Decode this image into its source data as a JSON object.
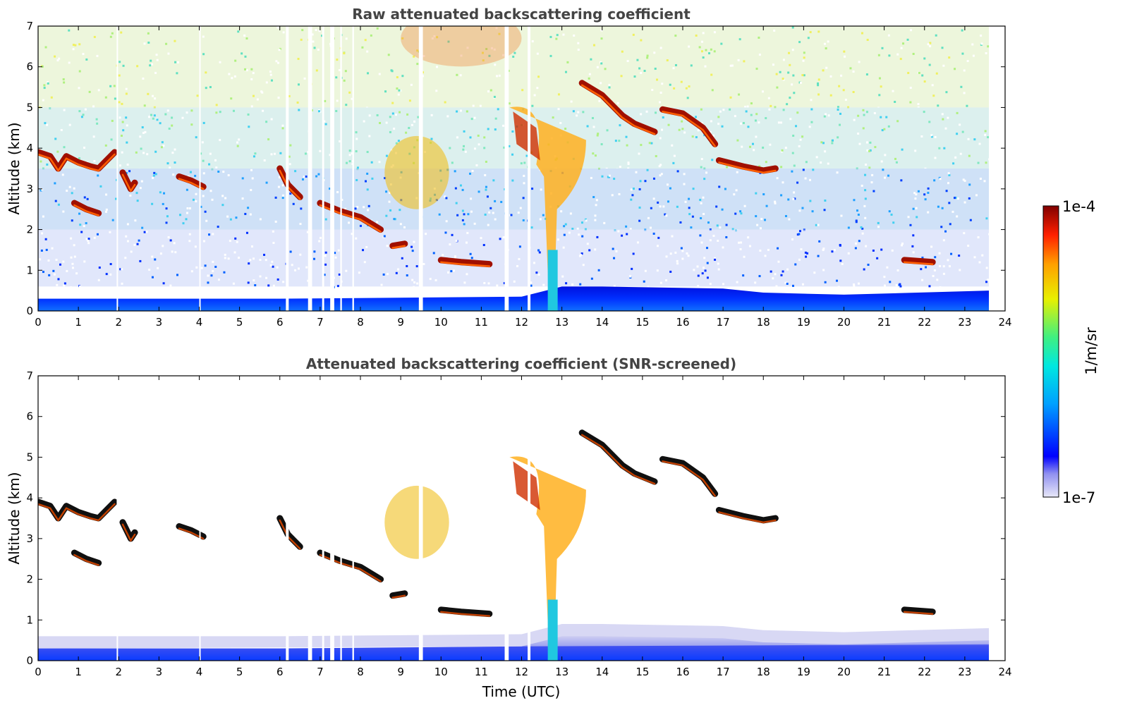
{
  "chart_data": [
    {
      "type": "heatmap",
      "title": "Raw attenuated backscattering coefficient",
      "xlabel": "",
      "ylabel": "Altitude (km)",
      "xlim": [
        0,
        24
      ],
      "ylim": [
        0,
        7
      ],
      "xticks": [
        "0",
        "1",
        "2",
        "3",
        "4",
        "5",
        "6",
        "7",
        "8",
        "9",
        "10",
        "11",
        "12",
        "13",
        "14",
        "15",
        "16",
        "17",
        "18",
        "19",
        "20",
        "21",
        "22",
        "23",
        "24"
      ],
      "yticks": [
        "0",
        "1",
        "2",
        "3",
        "4",
        "5",
        "6",
        "7"
      ],
      "grid": false,
      "data_end_time": 23.6,
      "missing_intervals": [
        [
          1.95,
          1.98
        ],
        [
          4.0,
          4.03
        ],
        [
          6.15,
          6.22
        ],
        [
          6.7,
          6.8
        ],
        [
          7.05,
          7.1
        ],
        [
          7.25,
          7.35
        ],
        [
          7.5,
          7.54
        ],
        [
          7.8,
          7.84
        ],
        [
          9.45,
          9.55
        ],
        [
          11.58,
          11.68
        ],
        [
          12.15,
          12.22
        ]
      ],
      "features": [
        {
          "kind": "boundary_layer",
          "t_start": 0,
          "t_end": 23.6,
          "top_km": [
            [
              0,
              0.3
            ],
            [
              6,
              0.3
            ],
            [
              12,
              0.35
            ],
            [
              13,
              0.6
            ],
            [
              14,
              0.6
            ],
            [
              17,
              0.55
            ],
            [
              18,
              0.45
            ],
            [
              20,
              0.4
            ],
            [
              23.6,
              0.5
            ]
          ]
        },
        {
          "kind": "cloud_layer",
          "points": [
            [
              0.0,
              3.9
            ],
            [
              0.3,
              3.8
            ],
            [
              0.5,
              3.5
            ],
            [
              0.7,
              3.8
            ],
            [
              1.0,
              3.65
            ],
            [
              1.3,
              3.55
            ],
            [
              1.5,
              3.5
            ],
            [
              1.7,
              3.7
            ],
            [
              1.9,
              3.9
            ]
          ]
        },
        {
          "kind": "cloud_layer",
          "points": [
            [
              2.1,
              3.4
            ],
            [
              2.3,
              3.0
            ],
            [
              2.4,
              3.15
            ]
          ]
        },
        {
          "kind": "cloud_layer",
          "points": [
            [
              0.9,
              2.65
            ],
            [
              1.2,
              2.5
            ],
            [
              1.5,
              2.4
            ]
          ]
        },
        {
          "kind": "cloud_layer",
          "points": [
            [
              3.5,
              3.3
            ],
            [
              3.8,
              3.2
            ],
            [
              4.1,
              3.05
            ]
          ]
        },
        {
          "kind": "cloud_layer",
          "points": [
            [
              6.0,
              3.5
            ],
            [
              6.2,
              3.1
            ],
            [
              6.5,
              2.8
            ]
          ]
        },
        {
          "kind": "cloud_layer",
          "points": [
            [
              7.0,
              2.65
            ],
            [
              7.5,
              2.45
            ],
            [
              8.0,
              2.3
            ],
            [
              8.5,
              2.0
            ]
          ]
        },
        {
          "kind": "cloud_layer",
          "points": [
            [
              8.8,
              1.6
            ],
            [
              9.1,
              1.65
            ]
          ]
        },
        {
          "kind": "cloud_layer",
          "points": [
            [
              10.0,
              1.25
            ],
            [
              10.5,
              1.2
            ],
            [
              11.2,
              1.15
            ]
          ]
        },
        {
          "kind": "cloud_layer",
          "points": [
            [
              13.5,
              5.6
            ],
            [
              14.0,
              5.3
            ],
            [
              14.5,
              4.8
            ],
            [
              14.8,
              4.6
            ],
            [
              15.3,
              4.4
            ]
          ]
        },
        {
          "kind": "cloud_layer",
          "points": [
            [
              15.5,
              4.95
            ],
            [
              16.0,
              4.85
            ],
            [
              16.5,
              4.5
            ],
            [
              16.8,
              4.1
            ]
          ]
        },
        {
          "kind": "cloud_layer",
          "points": [
            [
              16.9,
              3.7
            ],
            [
              17.5,
              3.55
            ],
            [
              18.0,
              3.45
            ],
            [
              18.3,
              3.5
            ]
          ]
        },
        {
          "kind": "cloud_layer",
          "points": [
            [
              21.5,
              1.25
            ],
            [
              22.2,
              1.2
            ]
          ]
        },
        {
          "kind": "precipitating_cloud",
          "x_range": [
            11.7,
            13.6
          ],
          "y_range": [
            0,
            5.0
          ]
        },
        {
          "kind": "thin_cloud",
          "x_range": [
            8.6,
            10.2
          ],
          "y_range": [
            2.5,
            4.3
          ]
        }
      ]
    },
    {
      "type": "heatmap",
      "title": "Attenuated backscattering coefficient (SNR-screened)",
      "xlabel": "Time (UTC)",
      "ylabel": "Altitude (km)",
      "xlim": [
        0,
        24
      ],
      "ylim": [
        0,
        7
      ],
      "xticks": [
        "0",
        "1",
        "2",
        "3",
        "4",
        "5",
        "6",
        "7",
        "8",
        "9",
        "10",
        "11",
        "12",
        "13",
        "14",
        "15",
        "16",
        "17",
        "18",
        "19",
        "20",
        "21",
        "22",
        "23",
        "24"
      ],
      "yticks": [
        "0",
        "1",
        "2",
        "3",
        "4",
        "5",
        "6",
        "7"
      ],
      "grid": false,
      "data_end_time": 23.6,
      "same_features_as": "Raw attenuated backscattering coefficient"
    }
  ],
  "colorbar": {
    "label": "1/m/sr",
    "min_label": "1e-7",
    "max_label": "1e-4",
    "scale": "log",
    "colormap": "jet"
  }
}
